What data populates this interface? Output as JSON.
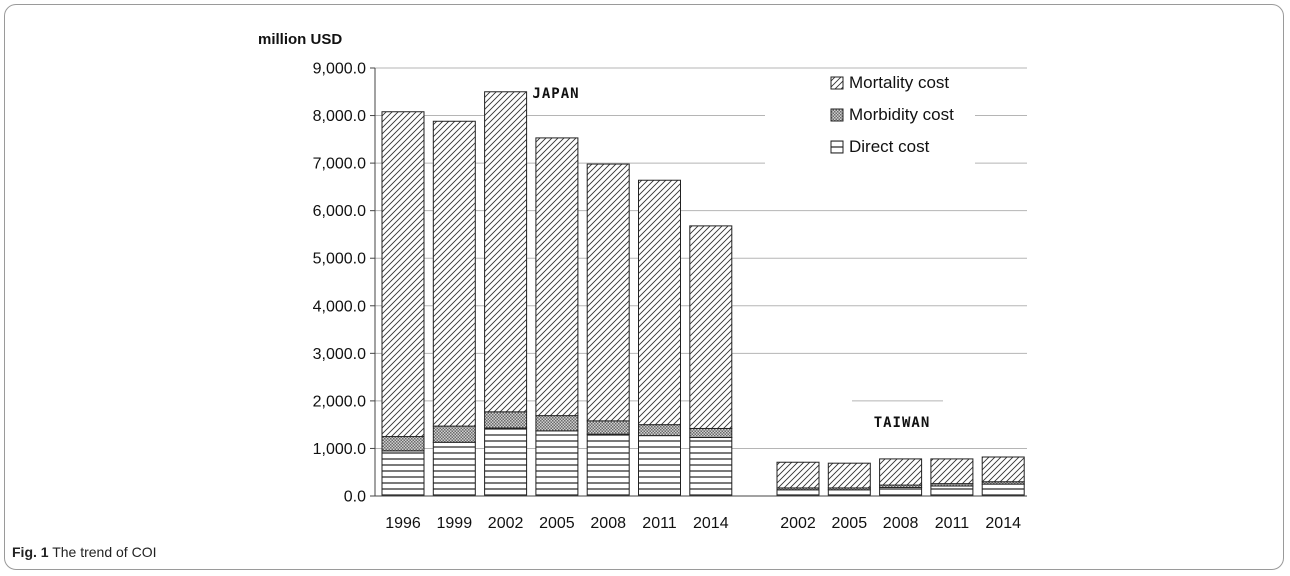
{
  "caption": {
    "label": "Fig. 1",
    "text": "The trend of COI"
  },
  "chart_data": {
    "type": "bar",
    "stacked": true,
    "ylabel": "million USD",
    "ylim": [
      0,
      9000
    ],
    "yticks": [
      0,
      1000,
      2000,
      3000,
      4000,
      5000,
      6000,
      7000,
      8000,
      9000
    ],
    "ytick_labels": [
      "0.0",
      "1,000.0",
      "2,000.0",
      "3,000.0",
      "4,000.0",
      "5,000.0",
      "6,000.0",
      "7,000.0",
      "8,000.0",
      "9,000.0"
    ],
    "grid": true,
    "legend_position": "top-right",
    "groups": [
      {
        "label": "JAPAN",
        "categories": [
          "1996",
          "1999",
          "2002",
          "2005",
          "2008",
          "2011",
          "2014"
        ],
        "series": [
          {
            "name": "Direct cost",
            "values": [
              950,
              1130,
              1430,
              1370,
              1300,
              1270,
              1230
            ]
          },
          {
            "name": "Morbidity cost",
            "values": [
              300,
              340,
              340,
              320,
              280,
              230,
              190
            ]
          },
          {
            "name": "Mortality cost",
            "values": [
              6830,
              6410,
              6730,
              5840,
              5400,
              5140,
              4260
            ]
          }
        ]
      },
      {
        "label": "TAIWAN",
        "categories": [
          "2002",
          "2005",
          "2008",
          "2011",
          "2014"
        ],
        "series": [
          {
            "name": "Direct cost",
            "values": [
              130,
              130,
              180,
              210,
              250
            ]
          },
          {
            "name": "Morbidity cost",
            "values": [
              40,
              40,
              50,
              50,
              50
            ]
          },
          {
            "name": "Mortality cost",
            "values": [
              540,
              520,
              550,
              520,
              520
            ]
          }
        ]
      }
    ],
    "legend": [
      "Mortality cost",
      "Morbidity cost",
      "Direct cost"
    ]
  }
}
